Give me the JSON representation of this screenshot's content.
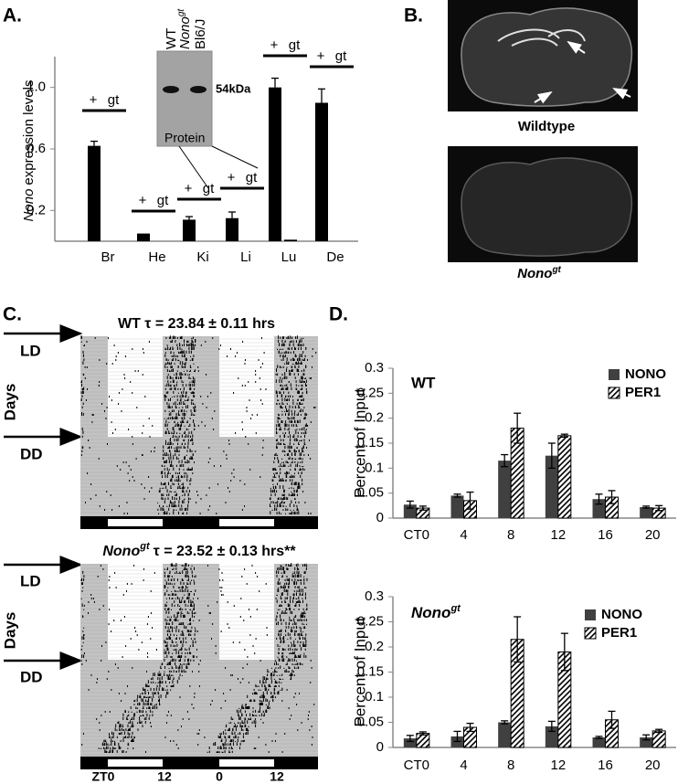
{
  "panel_labels": [
    "A.",
    "B.",
    "C.",
    "D."
  ],
  "genotype": {
    "name": "Nono",
    "sup": "gt"
  },
  "chart_data": [
    {
      "type": "bar",
      "ylabel": "expression levels",
      "categories": [
        "Br",
        "He",
        "Ki",
        "Li",
        "Lu",
        "De"
      ],
      "series": [
        {
          "name": "+",
          "color": "#000000",
          "values": [
            0.62,
            0.05,
            0.14,
            0.15,
            1.0,
            0.9
          ],
          "errors": [
            0.03,
            null,
            0.02,
            0.04,
            0.06,
            0.09
          ]
        },
        {
          "name": "gt",
          "color": "#000000",
          "values": [
            0,
            0,
            0,
            0,
            0.01,
            0
          ]
        }
      ],
      "ylim": [
        0,
        1.2
      ],
      "yticks": [
        0.2,
        0.6,
        {
          "value": 1,
          "label": "1.0"
        }
      ],
      "inset": {
        "lanes": [
          "WT",
          "Bl6/J"
        ],
        "band_label": "54kDa",
        "label": "Protein"
      }
    },
    {
      "type": "bar",
      "title": "WT",
      "ylabel": "Percent of Input",
      "categories": [
        "CT0",
        "4",
        "8",
        "12",
        "16",
        "20"
      ],
      "series": [
        {
          "name": "NONO",
          "color": "#404040",
          "values": [
            0.027,
            0.045,
            0.115,
            0.125,
            0.038,
            0.022
          ],
          "errors": [
            0.007,
            0.003,
            0.012,
            0.025,
            0.01,
            0.002
          ]
        },
        {
          "name": "PER1",
          "color": "#000000",
          "hatch": true,
          "values": [
            0.02,
            0.035,
            0.18,
            0.165,
            0.042,
            0.02
          ],
          "errors": [
            0.004,
            0.017,
            0.03,
            0.003,
            0.013,
            0.005
          ]
        }
      ],
      "ylim": [
        0,
        0.3
      ],
      "yticks": [
        0,
        0.05,
        0.1,
        0.15,
        0.2,
        0.25,
        0.3
      ],
      "legend": "upper right"
    },
    {
      "type": "bar",
      "ylabel": "Percent of Input",
      "categories": [
        "CT0",
        "4",
        "8",
        "12",
        "16",
        "20"
      ],
      "series": [
        {
          "name": "NONO",
          "color": "#404040",
          "values": [
            0.018,
            0.022,
            0.05,
            0.042,
            0.02,
            0.02
          ],
          "errors": [
            0.006,
            0.01,
            0.003,
            0.01,
            0.002,
            0.005
          ]
        },
        {
          "name": "PER1",
          "color": "#000000",
          "hatch": true,
          "values": [
            0.028,
            0.04,
            0.215,
            0.19,
            0.055,
            0.033
          ],
          "errors": [
            0.003,
            0.008,
            0.045,
            0.037,
            0.017,
            0.003
          ]
        }
      ],
      "ylim": [
        0,
        0.3
      ],
      "yticks": [
        0,
        0.05,
        0.1,
        0.15,
        0.2,
        0.25,
        0.3
      ],
      "legend": "upper right"
    }
  ],
  "brain": {
    "captions": [
      "Wildtype"
    ]
  },
  "actogram": {
    "titles": [
      "WT τ = 23.84 ± 0.11 hrs",
      "τ = 23.52 ± 0.13 hrs**"
    ],
    "conditions": [
      "LD",
      "DD"
    ],
    "ylabel": "Days",
    "x_labels": [
      "ZT0",
      "12",
      "0",
      "12"
    ]
  }
}
